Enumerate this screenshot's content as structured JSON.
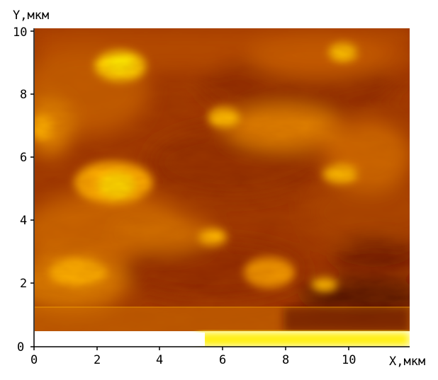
{
  "image": {
    "kind": "afm-topography-scan",
    "colormap": [
      "#5a0d00",
      "#8a2500",
      "#b84a00",
      "#e07e00",
      "#ffb300",
      "#ffe000"
    ]
  },
  "axes": {
    "y_title": "Y,мкм",
    "x_title": "X,мкм",
    "y_range": [
      0,
      10
    ],
    "x_range": [
      0,
      12
    ],
    "y_ticks": [
      "0",
      "2",
      "4",
      "6",
      "8",
      "10"
    ],
    "x_ticks": [
      "0",
      "2",
      "4",
      "6",
      "8",
      "10"
    ]
  }
}
